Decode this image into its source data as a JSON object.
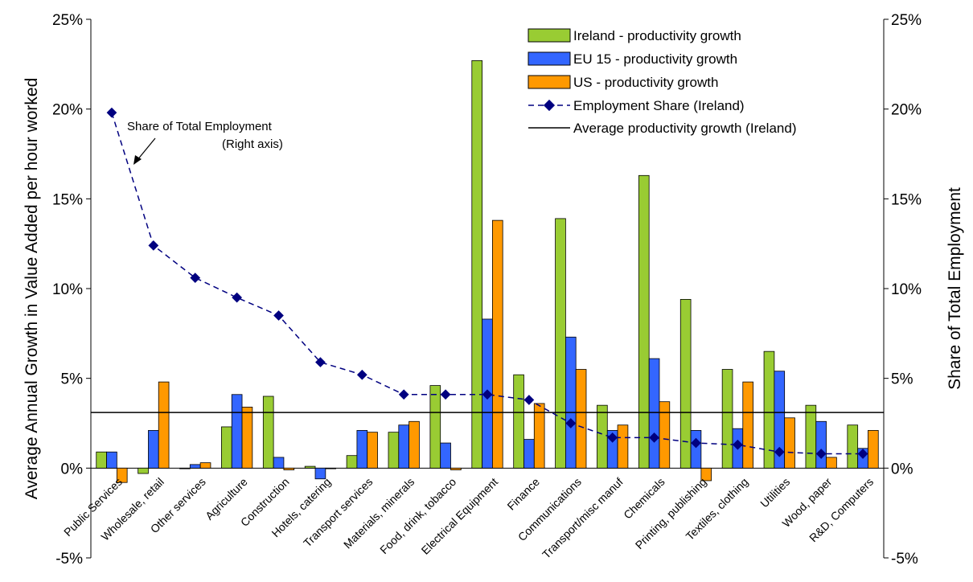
{
  "chart_data": {
    "type": "bar",
    "categories": [
      "Public Services",
      "Wholesale, retail",
      "Other services",
      "Agriculture",
      "Construction",
      "Hotels, catering",
      "Transport services",
      "Materials, minerals",
      "Food, drink, tobacco",
      "Electrical Equipment",
      "Finance",
      "Communications",
      "Transport/misc manuf",
      "Chemicals",
      "Printing, publishing",
      "Textiles, clothing",
      "Utilities",
      "Wood, paper",
      "R&D, Computers"
    ],
    "series": [
      {
        "name": "Ireland - productivity growth",
        "color": "#99cc33",
        "values": [
          0.9,
          -0.3,
          0.0,
          2.3,
          4.0,
          0.1,
          0.7,
          2.0,
          4.6,
          22.7,
          5.2,
          13.9,
          3.5,
          16.3,
          9.4,
          5.5,
          6.5,
          3.5,
          2.4
        ]
      },
      {
        "name": "EU 15 - productivity growth",
        "color": "#3366ff",
        "values": [
          0.9,
          2.1,
          0.2,
          4.1,
          0.6,
          -0.6,
          2.1,
          2.4,
          1.4,
          8.3,
          1.6,
          7.3,
          2.1,
          6.1,
          2.1,
          2.2,
          5.4,
          2.6,
          1.1
        ]
      },
      {
        "name": "US - productivity growth",
        "color": "#ff9900",
        "values": [
          -0.8,
          4.8,
          0.3,
          3.4,
          -0.1,
          0.0,
          2.0,
          2.6,
          -0.1,
          13.8,
          3.6,
          5.5,
          2.4,
          3.7,
          -0.7,
          4.8,
          2.8,
          0.6,
          2.1
        ]
      }
    ],
    "line_series": {
      "name": "Employment Share (Ireland)",
      "color": "#000080",
      "axis": "right",
      "values": [
        19.8,
        12.4,
        10.6,
        9.5,
        8.5,
        5.9,
        5.2,
        4.1,
        4.1,
        4.1,
        3.8,
        2.5,
        1.7,
        1.7,
        1.4,
        1.3,
        0.9,
        0.8,
        0.8
      ]
    },
    "reference_line": {
      "name": "Average productivity growth (Ireland)",
      "value": 3.1,
      "color": "#000000"
    },
    "ylabel": "Average Annual Growth in Value Added per hour worked",
    "ylabel_right": "Share of Total Employment",
    "ylim": [
      -5,
      25
    ],
    "ylim_right": [
      -5,
      25
    ],
    "yticks": [
      "-5%",
      "0%",
      "5%",
      "10%",
      "15%",
      "20%",
      "25%"
    ],
    "yticks_right": [
      "-5%",
      "0%",
      "5%",
      "10%",
      "15%",
      "20%",
      "25%"
    ],
    "legend_position": "top-right",
    "annotation": {
      "line1": "Share of Total Employment",
      "line2": "(Right axis)"
    }
  }
}
